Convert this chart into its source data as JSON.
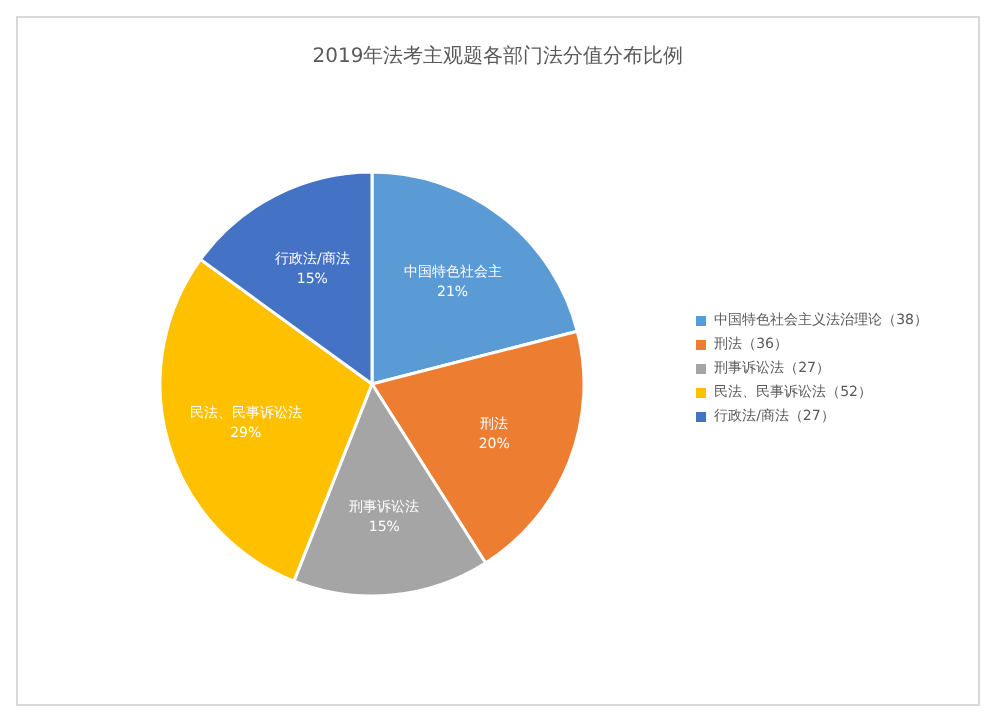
{
  "chart_data": {
    "type": "pie",
    "title": "2019年法考主观题各部门法分值分布比例",
    "categories": [
      "中国特色社会主义法治理论（38）",
      "刑法（36）",
      "刑事诉讼法（27）",
      "民法、民事诉讼法（52）",
      "行政法/商法（27）"
    ],
    "values": [
      21,
      20,
      15,
      29,
      15
    ],
    "value_labels": [
      "21%",
      "20%",
      "15%",
      "29%",
      "15%"
    ],
    "annotations": [
      "中国特色社会主",
      "刑法",
      "刑事诉讼法",
      "民法、民事诉讼法",
      "行政法/商法"
    ],
    "colors": [
      "#5b9bd5",
      "#ed7d31",
      "#a5a5a5",
      "#ffc000",
      "#4472c4"
    ],
    "legend": "right"
  }
}
